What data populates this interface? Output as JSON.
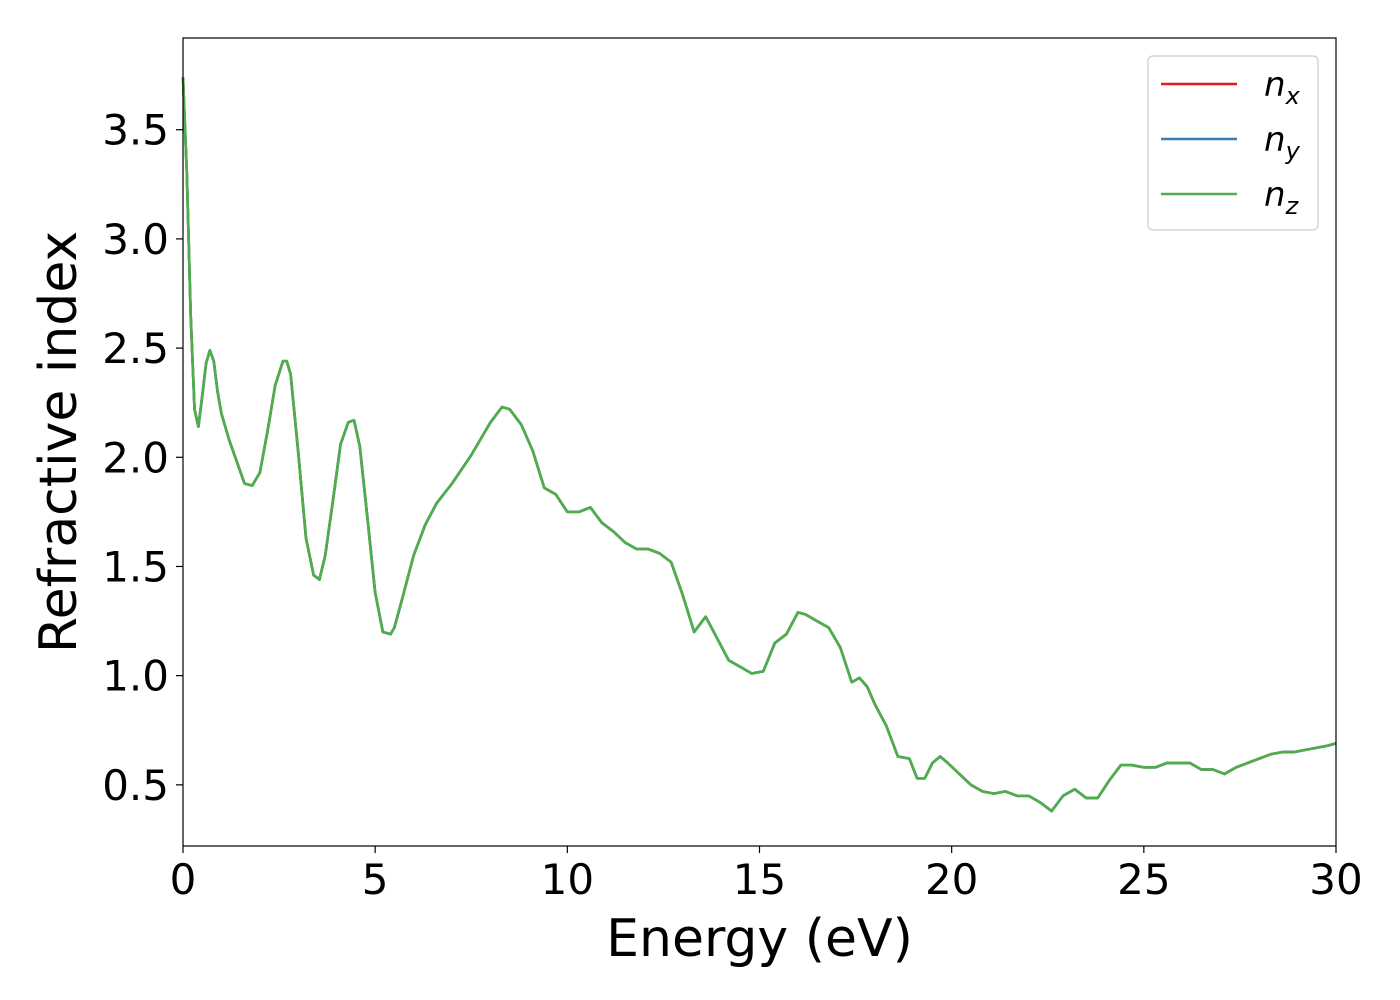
{
  "chart_data": {
    "type": "line",
    "title": "",
    "xlabel": "Energy (eV)",
    "ylabel": "Refractive index",
    "xlim": [
      0,
      30
    ],
    "ylim": [
      0.22,
      3.92
    ],
    "xticks": [
      0,
      5,
      10,
      15,
      20,
      25,
      30
    ],
    "xtick_labels": [
      "0",
      "5",
      "10",
      "15",
      "20",
      "25",
      "30"
    ],
    "yticks": [
      0.5,
      1.0,
      1.5,
      2.0,
      2.5,
      3.0,
      3.5
    ],
    "ytick_labels": [
      "0.5",
      "1.0",
      "1.5",
      "2.0",
      "2.5",
      "3.0",
      "3.5"
    ],
    "grid": false,
    "legend_position": "top-right",
    "x": [
      0,
      0.1,
      0.2,
      0.3,
      0.4,
      0.5,
      0.6,
      0.7,
      0.8,
      0.9,
      1.0,
      1.2,
      1.4,
      1.6,
      1.8,
      2.0,
      2.2,
      2.4,
      2.6,
      2.7,
      2.8,
      3.0,
      3.2,
      3.4,
      3.55,
      3.7,
      3.9,
      4.1,
      4.3,
      4.45,
      4.6,
      4.8,
      5.0,
      5.2,
      5.4,
      5.5,
      5.7,
      6.0,
      6.3,
      6.6,
      7.0,
      7.5,
      8.0,
      8.3,
      8.5,
      8.8,
      9.1,
      9.4,
      9.7,
      10.0,
      10.3,
      10.6,
      10.9,
      11.2,
      11.5,
      11.8,
      12.1,
      12.4,
      12.7,
      13.0,
      13.3,
      13.6,
      13.9,
      14.2,
      14.5,
      14.8,
      15.1,
      15.4,
      15.7,
      16.0,
      16.2,
      16.5,
      16.8,
      17.1,
      17.4,
      17.6,
      17.8,
      18.0,
      18.3,
      18.6,
      18.9,
      19.1,
      19.3,
      19.5,
      19.7,
      19.9,
      20.2,
      20.5,
      20.8,
      21.1,
      21.4,
      21.7,
      22.0,
      22.3,
      22.6,
      22.9,
      23.2,
      23.5,
      23.8,
      24.1,
      24.4,
      24.7,
      25.0,
      25.3,
      25.6,
      25.9,
      26.2,
      26.5,
      26.8,
      27.1,
      27.4,
      27.7,
      28.0,
      28.3,
      28.6,
      28.9,
      29.2,
      29.5,
      29.8,
      30.0
    ],
    "series": [
      {
        "name": "n_x",
        "color": "#e41a1c",
        "values": [
          3.74,
          3.3,
          2.65,
          2.22,
          2.14,
          2.28,
          2.43,
          2.49,
          2.44,
          2.3,
          2.2,
          2.08,
          1.98,
          1.88,
          1.87,
          1.93,
          2.12,
          2.33,
          2.44,
          2.44,
          2.38,
          2.02,
          1.63,
          1.46,
          1.44,
          1.55,
          1.8,
          2.06,
          2.16,
          2.17,
          2.05,
          1.72,
          1.38,
          1.2,
          1.19,
          1.22,
          1.35,
          1.55,
          1.69,
          1.79,
          1.88,
          2.01,
          2.16,
          2.23,
          2.22,
          2.15,
          2.03,
          1.86,
          1.83,
          1.75,
          1.75,
          1.77,
          1.7,
          1.66,
          1.61,
          1.58,
          1.58,
          1.56,
          1.52,
          1.37,
          1.2,
          1.27,
          1.17,
          1.07,
          1.04,
          1.01,
          1.02,
          1.15,
          1.19,
          1.29,
          1.28,
          1.25,
          1.22,
          1.13,
          0.97,
          0.99,
          0.95,
          0.87,
          0.77,
          0.63,
          0.62,
          0.53,
          0.53,
          0.6,
          0.63,
          0.6,
          0.55,
          0.5,
          0.47,
          0.46,
          0.47,
          0.45,
          0.45,
          0.42,
          0.38,
          0.45,
          0.48,
          0.44,
          0.44,
          0.52,
          0.59,
          0.59,
          0.58,
          0.58,
          0.6,
          0.6,
          0.6,
          0.57,
          0.57,
          0.55,
          0.58,
          0.6,
          0.62,
          0.64,
          0.65,
          0.65,
          0.66,
          0.67,
          0.68,
          0.69
        ]
      },
      {
        "name": "n_y",
        "color": "#377eb8",
        "values": [
          3.74,
          3.3,
          2.65,
          2.22,
          2.14,
          2.28,
          2.43,
          2.49,
          2.44,
          2.3,
          2.2,
          2.08,
          1.98,
          1.88,
          1.87,
          1.93,
          2.12,
          2.33,
          2.44,
          2.44,
          2.38,
          2.02,
          1.63,
          1.46,
          1.44,
          1.55,
          1.8,
          2.06,
          2.16,
          2.17,
          2.05,
          1.72,
          1.38,
          1.2,
          1.19,
          1.22,
          1.35,
          1.55,
          1.69,
          1.79,
          1.88,
          2.01,
          2.16,
          2.23,
          2.22,
          2.15,
          2.03,
          1.86,
          1.83,
          1.75,
          1.75,
          1.77,
          1.7,
          1.66,
          1.61,
          1.58,
          1.58,
          1.56,
          1.52,
          1.37,
          1.2,
          1.27,
          1.17,
          1.07,
          1.04,
          1.01,
          1.02,
          1.15,
          1.19,
          1.29,
          1.28,
          1.25,
          1.22,
          1.13,
          0.97,
          0.99,
          0.95,
          0.87,
          0.77,
          0.63,
          0.62,
          0.53,
          0.53,
          0.6,
          0.63,
          0.6,
          0.55,
          0.5,
          0.47,
          0.46,
          0.47,
          0.45,
          0.45,
          0.42,
          0.38,
          0.45,
          0.48,
          0.44,
          0.44,
          0.52,
          0.59,
          0.59,
          0.58,
          0.58,
          0.6,
          0.6,
          0.6,
          0.57,
          0.57,
          0.55,
          0.58,
          0.6,
          0.62,
          0.64,
          0.65,
          0.65,
          0.66,
          0.67,
          0.68,
          0.69
        ]
      },
      {
        "name": "n_z",
        "color": "#4daf4a",
        "values": [
          3.74,
          3.3,
          2.65,
          2.22,
          2.14,
          2.28,
          2.43,
          2.49,
          2.44,
          2.3,
          2.2,
          2.08,
          1.98,
          1.88,
          1.87,
          1.93,
          2.12,
          2.33,
          2.44,
          2.44,
          2.38,
          2.02,
          1.63,
          1.46,
          1.44,
          1.55,
          1.8,
          2.06,
          2.16,
          2.17,
          2.05,
          1.72,
          1.38,
          1.2,
          1.19,
          1.22,
          1.35,
          1.55,
          1.69,
          1.79,
          1.88,
          2.01,
          2.16,
          2.23,
          2.22,
          2.15,
          2.03,
          1.86,
          1.83,
          1.75,
          1.75,
          1.77,
          1.7,
          1.66,
          1.61,
          1.58,
          1.58,
          1.56,
          1.52,
          1.37,
          1.2,
          1.27,
          1.17,
          1.07,
          1.04,
          1.01,
          1.02,
          1.15,
          1.19,
          1.29,
          1.28,
          1.25,
          1.22,
          1.13,
          0.97,
          0.99,
          0.95,
          0.87,
          0.77,
          0.63,
          0.62,
          0.53,
          0.53,
          0.6,
          0.63,
          0.6,
          0.55,
          0.5,
          0.47,
          0.46,
          0.47,
          0.45,
          0.45,
          0.42,
          0.38,
          0.45,
          0.48,
          0.44,
          0.44,
          0.52,
          0.59,
          0.59,
          0.58,
          0.58,
          0.6,
          0.6,
          0.6,
          0.57,
          0.57,
          0.55,
          0.58,
          0.6,
          0.62,
          0.64,
          0.65,
          0.65,
          0.66,
          0.67,
          0.68,
          0.69
        ]
      }
    ],
    "legend": [
      {
        "base": "n",
        "sub": "x",
        "color": "#e41a1c"
      },
      {
        "base": "n",
        "sub": "y",
        "color": "#377eb8"
      },
      {
        "base": "n",
        "sub": "z",
        "color": "#4daf4a"
      }
    ]
  }
}
